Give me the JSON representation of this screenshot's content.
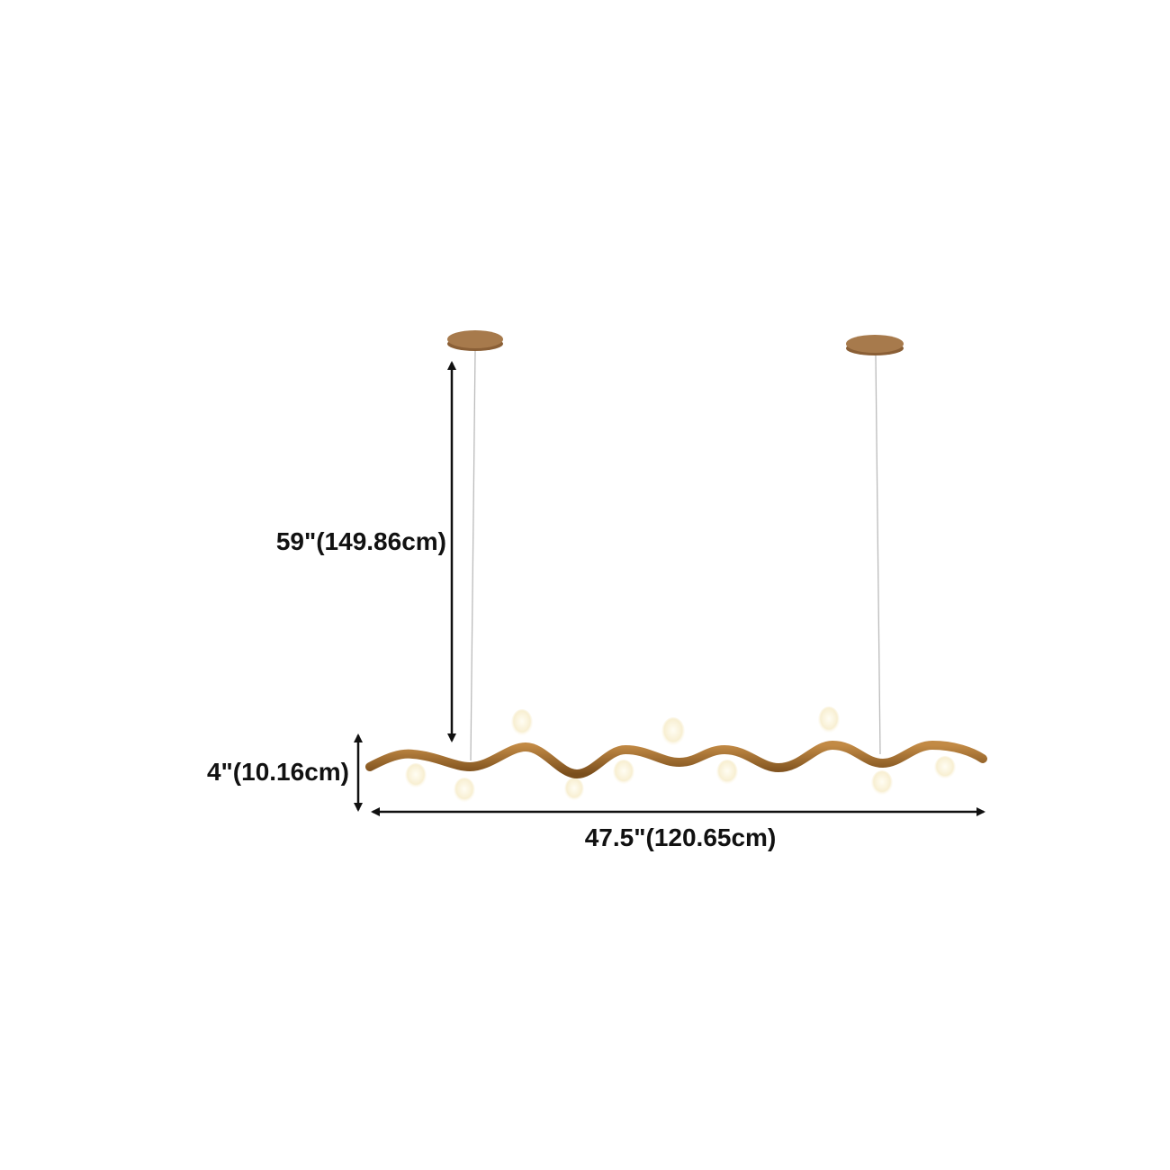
{
  "dimensions": {
    "drop_height": "59\"(149.86cm)",
    "fixture_height": "4\"(10.16cm)",
    "fixture_length": "47.5\"(120.65cm)"
  },
  "colors": {
    "wood": "#a8732e",
    "wood_dark": "#7a4e1c",
    "canopy": "#a77a4c",
    "bulb": "#fbf3dc",
    "arrow": "#111111"
  }
}
